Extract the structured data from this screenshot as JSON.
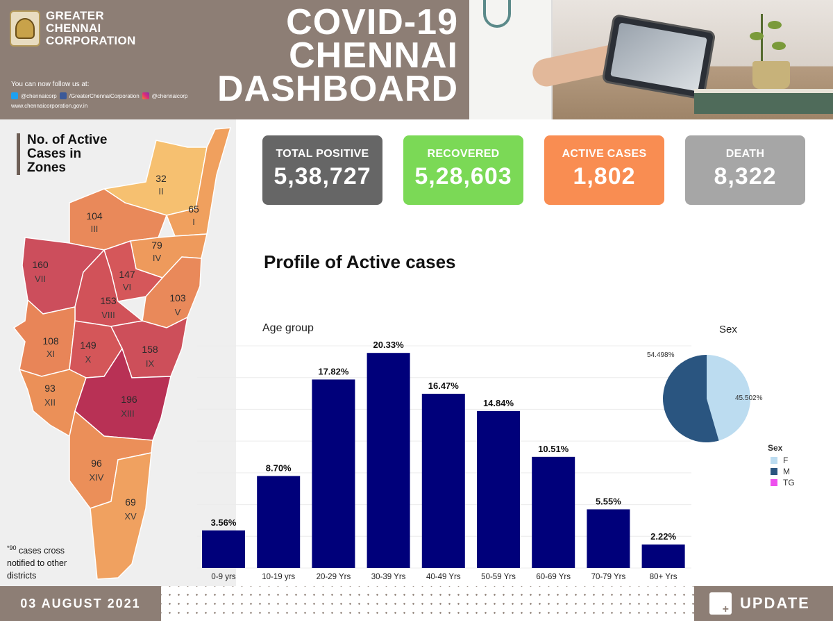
{
  "header": {
    "org_name_lines": [
      "GREATER",
      "CHENNAI",
      "CORPORATION"
    ],
    "title_lines": [
      "COVID-19",
      "CHENNAI",
      "DASHBOARD"
    ],
    "follow_intro": "You can now follow us at:",
    "twitter": "@chennaicorp",
    "facebook": "/GreaterChennaiCorporation",
    "instagram": "@chennaicorp",
    "website": "www.chennaicorporation.gov.in"
  },
  "map": {
    "title_lines": [
      "No. of Active",
      "Cases in",
      "Zones"
    ],
    "zones": [
      {
        "roman": "I",
        "cases": "65",
        "color": "#f0a05e"
      },
      {
        "roman": "II",
        "cases": "32",
        "color": "#f6c070"
      },
      {
        "roman": "III",
        "cases": "104",
        "color": "#e9895a"
      },
      {
        "roman": "IV",
        "cases": "79",
        "color": "#ee9a5c"
      },
      {
        "roman": "V",
        "cases": "103",
        "color": "#e9895a"
      },
      {
        "roman": "VI",
        "cases": "147",
        "color": "#d5575a"
      },
      {
        "roman": "VII",
        "cases": "160",
        "color": "#cc4e5c"
      },
      {
        "roman": "VIII",
        "cases": "153",
        "color": "#d15259"
      },
      {
        "roman": "IX",
        "cases": "158",
        "color": "#cd4f5a"
      },
      {
        "roman": "X",
        "cases": "149",
        "color": "#d45659"
      },
      {
        "roman": "XI",
        "cases": "108",
        "color": "#e88558"
      },
      {
        "roman": "XII",
        "cases": "93",
        "color": "#eb9058"
      },
      {
        "roman": "XIII",
        "cases": "196",
        "color": "#b83155"
      },
      {
        "roman": "XIV",
        "cases": "96",
        "color": "#eb8f59"
      },
      {
        "roman": "XV",
        "cases": "69",
        "color": "#f0a160"
      }
    ],
    "footnote_number": "*90",
    "footnote_lines": [
      " cases cross",
      "notified to other",
      "districts"
    ]
  },
  "kpis": [
    {
      "label": "TOTAL POSITIVE",
      "value": "5,38,727",
      "color": "#666666"
    },
    {
      "label": "RECOVERED",
      "value": "5,28,603",
      "color": "#7bd956"
    },
    {
      "label": "ACTIVE CASES",
      "value": "1,802",
      "color": "#f98d52"
    },
    {
      "label": "DEATH",
      "value": "8,322",
      "color": "#a6a6a6"
    }
  ],
  "profile_title": "Profile of Active cases",
  "age_group_label": "Age group",
  "sex_label": "Sex",
  "chart_data": [
    {
      "type": "bar",
      "xlabel": "Age group",
      "categories": [
        "0-9 yrs",
        "10-19 yrs",
        "20-29 Yrs",
        "30-39 Yrs",
        "40-49 Yrs",
        "50-59 Yrs",
        "60-69 Yrs",
        "70-79 Yrs",
        "80+ Yrs"
      ],
      "values": [
        3.56,
        8.7,
        17.82,
        20.33,
        16.47,
        14.84,
        10.51,
        5.55,
        2.22
      ],
      "value_labels": [
        "3.56%",
        "8.70%",
        "17.82%",
        "20.33%",
        "16.47%",
        "14.84%",
        "10.51%",
        "5.55%",
        "2.22%"
      ],
      "ylim": [
        0,
        21
      ],
      "grid": true,
      "bar_color": "#00007a"
    },
    {
      "type": "pie",
      "title": "Sex",
      "categories": [
        "F",
        "M"
      ],
      "values": [
        45.502,
        54.498
      ],
      "value_labels": [
        "45.502%",
        "54.498%"
      ],
      "colors": [
        "#bcdcf0",
        "#2a5580"
      ],
      "legend_title": "Sex",
      "legend": [
        {
          "label": "F",
          "color": "#bcdcf0"
        },
        {
          "label": "M",
          "color": "#2a5580"
        },
        {
          "label": "TG",
          "color": "#ee50ee"
        }
      ]
    }
  ],
  "footer": {
    "date": "03 AUGUST 2021",
    "update_label": "UPDATE"
  }
}
